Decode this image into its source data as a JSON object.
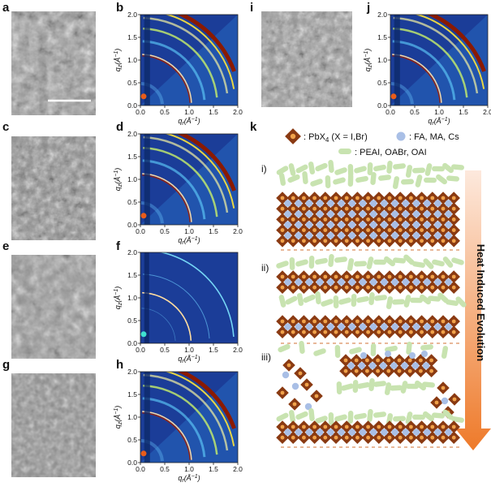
{
  "panels": {
    "a": "a",
    "b": "b",
    "c": "c",
    "d": "d",
    "e": "e",
    "f": "f",
    "g": "g",
    "h": "h",
    "i": "i",
    "j": "j",
    "k": "k"
  },
  "axes": {
    "x_label": "q_r(Å^-1)",
    "y_label": "q_z(Å^-1)",
    "x_ticks": [
      "0.0",
      "0.5",
      "1.0",
      "1.5",
      "2.0"
    ],
    "y_ticks": [
      "0.0",
      "0.5",
      "1.0",
      "1.5",
      "2.0"
    ]
  },
  "legend": {
    "pbx4": ": PbX4 (X = I,Br)",
    "cations": ": FA, MA, Cs",
    "ligands": ": PEAI, OABr, OAI"
  },
  "stages": [
    "i)",
    "ii)",
    "iii)"
  ],
  "arrow_label": "Heat Induced Evolution",
  "colors": {
    "octahedron": "#8a3a12",
    "octahedron_center": "#f0a24a",
    "cation": "#a9bfe6",
    "ligand": "#c8e3b0",
    "gixd_background": "#1a3e9e",
    "arrow_start": "#fbe3d6",
    "arrow_end": "#ef7d2e"
  }
}
